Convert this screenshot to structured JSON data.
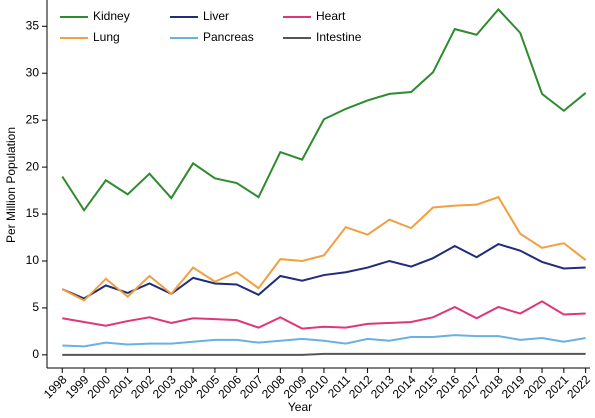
{
  "chart_data": {
    "type": "line",
    "x_label": "Year",
    "y_label": "Per Million Population",
    "x": [
      1998,
      1999,
      2000,
      2001,
      2002,
      2003,
      2004,
      2005,
      2006,
      2007,
      2008,
      2009,
      2010,
      2011,
      2012,
      2013,
      2014,
      2015,
      2016,
      2017,
      2018,
      2019,
      2020,
      2021,
      2022
    ],
    "xlim": [
      1997.3,
      2022.2
    ],
    "xticks": [
      1998,
      1999,
      2000,
      2001,
      2002,
      2003,
      2004,
      2005,
      2006,
      2007,
      2008,
      2009,
      2010,
      2011,
      2012,
      2013,
      2014,
      2015,
      2016,
      2017,
      2018,
      2019,
      2020,
      2021,
      2022
    ],
    "ylim": [
      -1.4,
      37.8
    ],
    "yticks": [
      0,
      5,
      10,
      15,
      20,
      25,
      30,
      35
    ],
    "grid": false,
    "legend": "upper left",
    "series": [
      {
        "name": "Kidney",
        "color": "#2e8b2e",
        "values": [
          19.0,
          15.4,
          18.6,
          17.1,
          19.3,
          16.7,
          20.4,
          18.8,
          18.3,
          16.8,
          21.6,
          20.8,
          25.1,
          26.2,
          27.1,
          27.8,
          28.0,
          30.1,
          34.7,
          34.1,
          36.8,
          34.3,
          27.8,
          26.0,
          27.9
        ]
      },
      {
        "name": "Liver",
        "color": "#1f2d7a",
        "values": [
          7.0,
          6.0,
          7.4,
          6.6,
          7.6,
          6.5,
          8.2,
          7.6,
          7.5,
          6.4,
          8.4,
          7.9,
          8.5,
          8.8,
          9.3,
          10.0,
          9.4,
          10.3,
          11.6,
          10.4,
          11.8,
          11.1,
          9.9,
          9.2,
          9.3
        ]
      },
      {
        "name": "Heart",
        "color": "#e0357a",
        "values": [
          3.9,
          3.5,
          3.1,
          3.6,
          4.0,
          3.4,
          3.9,
          3.8,
          3.7,
          2.9,
          4.0,
          2.8,
          3.0,
          2.9,
          3.3,
          3.4,
          3.5,
          4.0,
          5.1,
          3.9,
          5.1,
          4.4,
          5.7,
          4.3,
          4.4
        ]
      },
      {
        "name": "Lung",
        "color": "#f0a040",
        "values": [
          7.0,
          5.8,
          8.1,
          6.2,
          8.4,
          6.5,
          9.3,
          7.8,
          8.8,
          7.1,
          10.2,
          10.0,
          10.6,
          13.6,
          12.8,
          14.4,
          13.5,
          15.7,
          15.9,
          16.0,
          16.8,
          12.9,
          11.4,
          11.9,
          10.1
        ]
      },
      {
        "name": "Pancreas",
        "color": "#6ab0e0",
        "values": [
          1.0,
          0.9,
          1.3,
          1.1,
          1.2,
          1.2,
          1.4,
          1.6,
          1.6,
          1.3,
          1.5,
          1.7,
          1.5,
          1.2,
          1.7,
          1.5,
          1.9,
          1.9,
          2.1,
          2.0,
          2.0,
          1.6,
          1.8,
          1.4,
          1.8
        ]
      },
      {
        "name": "Intestine",
        "color": "#555555",
        "values": [
          0,
          0,
          0,
          0,
          0,
          0,
          0,
          0,
          0,
          0,
          0,
          0,
          0.1,
          0.1,
          0.1,
          0.1,
          0.1,
          0.1,
          0.1,
          0.1,
          0.1,
          0.1,
          0.1,
          0.1,
          0.1
        ]
      }
    ]
  }
}
